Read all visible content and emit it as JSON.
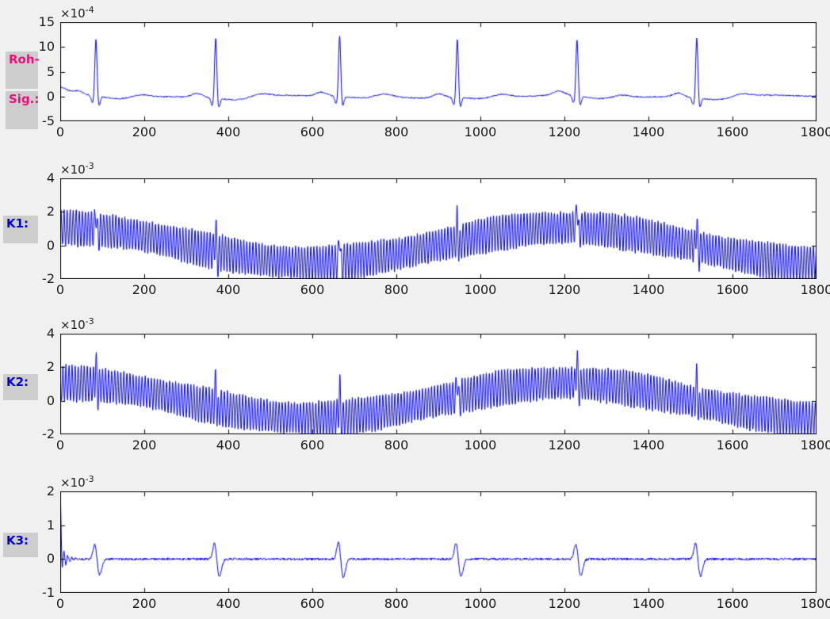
{
  "figure": {
    "background": "#f0f0f0",
    "plot_background": "#ffffff",
    "axis_color": "#000000",
    "tick_label_color": "#1a1a1a",
    "line_color": "#0000ee",
    "label_box_color": "#cdcdcd",
    "raw_label_color": "#e8107f",
    "channel_label_color": "#0000cc"
  },
  "side_labels": [
    {
      "label": "Roh-"
    },
    {
      "label": "Sig.:"
    },
    {
      "label": "K1:"
    },
    {
      "label": "K2:"
    },
    {
      "label": "K3:"
    }
  ],
  "chart_data": [
    {
      "id": "roh-sig",
      "type": "line",
      "row_label": "Roh-Sig.:",
      "xlim": [
        0,
        1800
      ],
      "ylim": [
        -5,
        15
      ],
      "xticks": [
        0,
        200,
        400,
        600,
        800,
        1000,
        1200,
        1400,
        1600,
        1800
      ],
      "yticks": [
        15,
        10,
        5,
        0,
        -5
      ],
      "y_exponent": {
        "base": "×10",
        "power": "-4"
      },
      "grid": false,
      "box": true,
      "legend": null,
      "signal": {
        "kind": "ecg_raw",
        "sample_step": 1,
        "noise": 0.13,
        "initial_amplitude": 1.6,
        "beats_x": [
          85,
          370,
          665,
          945,
          1230,
          1515
        ],
        "r_peaks": [
          11.5,
          12.3,
          12.5,
          11.8,
          11.5,
          12.2
        ],
        "q_depth": -1.5,
        "s_depth": -1.9,
        "p_amplitude": 0.8,
        "t_amplitude": 0.6
      }
    },
    {
      "id": "k1",
      "type": "line",
      "row_label": "K1:",
      "xlim": [
        0,
        1800
      ],
      "ylim": [
        -2,
        4
      ],
      "xticks": [
        0,
        200,
        400,
        600,
        800,
        1000,
        1200,
        1400,
        1600,
        1800
      ],
      "yticks": [
        4,
        2,
        0,
        -2
      ],
      "y_exponent": {
        "base": "×10",
        "power": "-3"
      },
      "grid": false,
      "box": true,
      "legend": null,
      "signal": {
        "kind": "noisy_oscillation",
        "sample_step": 0.85,
        "noise": 0.07,
        "osc_amplitude": 1.0,
        "osc_period": 7.25,
        "osc_phase": 0.0,
        "baseline_amplitude": 1.05,
        "baseline_period": 1200,
        "beats_x": [
          85,
          370,
          665,
          945,
          1230,
          1515
        ],
        "spike_peaks": [
          2.65,
          1.5,
          1.4,
          1.95,
          3.1,
          1.95
        ]
      }
    },
    {
      "id": "k2",
      "type": "line",
      "row_label": "K2:",
      "xlim": [
        0,
        1800
      ],
      "ylim": [
        -2,
        4
      ],
      "xticks": [
        0,
        200,
        400,
        600,
        800,
        1000,
        1200,
        1400,
        1600,
        1800
      ],
      "yticks": [
        4,
        2,
        0,
        -2
      ],
      "y_exponent": {
        "base": "×10",
        "power": "-3"
      },
      "grid": false,
      "box": true,
      "legend": null,
      "signal": {
        "kind": "noisy_oscillation",
        "sample_step": 0.85,
        "noise": 0.07,
        "osc_amplitude": 1.0,
        "osc_period": 7.25,
        "osc_phase": 2.3,
        "baseline_amplitude": 1.05,
        "baseline_period": 1200,
        "beats_x": [
          85,
          370,
          665,
          945,
          1230,
          1515
        ],
        "spike_peaks": [
          2.6,
          1.55,
          1.35,
          1.9,
          3.0,
          1.9
        ]
      }
    },
    {
      "id": "k3",
      "type": "line",
      "row_label": "K3:",
      "xlim": [
        0,
        1800
      ],
      "ylim": [
        -1,
        2
      ],
      "xticks": [
        0,
        200,
        400,
        600,
        800,
        1000,
        1200,
        1400,
        1600,
        1800
      ],
      "yticks": [
        2,
        1,
        0,
        -1
      ],
      "y_exponent": {
        "base": "×10",
        "power": "-3"
      },
      "grid": false,
      "box": true,
      "legend": null,
      "signal": {
        "kind": "ecg_filtered",
        "sample_step": 1,
        "noise": 0.035,
        "initial_peak": 1.85,
        "ringing_period": 9,
        "beats_x": [
          85,
          370,
          665,
          945,
          1230,
          1515
        ],
        "wavelet_amplitudes": [
          0.5,
          0.55,
          0.58,
          0.55,
          0.52,
          0.55
        ]
      }
    }
  ]
}
